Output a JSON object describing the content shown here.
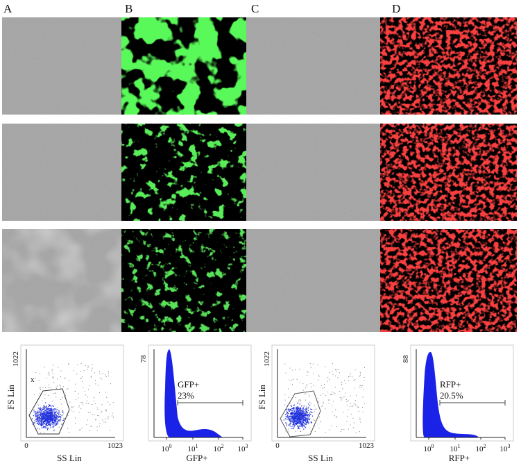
{
  "panel_labels": [
    "A",
    "B",
    "C",
    "D"
  ],
  "plots": [
    {
      "kind": "scatter",
      "y_label": "FS Lin",
      "x_label": "SS Lin",
      "y_max": "1022",
      "x_max": "1023",
      "origin": "0",
      "gate": "x"
    },
    {
      "kind": "histogram",
      "y_max": "78",
      "marker": "GFP+",
      "percent": "23%",
      "x_label": "GFP+",
      "x_ticks": [
        {
          "base": "10",
          "exp": "0"
        },
        {
          "base": "10",
          "exp": "1"
        },
        {
          "base": "10",
          "exp": "2"
        },
        {
          "base": "10",
          "exp": "3"
        }
      ]
    },
    {
      "kind": "scatter",
      "y_label": "FS Lin",
      "x_label": "SS Lin",
      "y_max": "1022",
      "x_max": "1023",
      "origin": "0"
    },
    {
      "kind": "histogram",
      "y_max": "88",
      "marker": "RFP+",
      "percent": "20.5%",
      "x_label": "RFP+",
      "x_ticks": [
        {
          "base": "10",
          "exp": "0"
        },
        {
          "base": "10",
          "exp": "1"
        },
        {
          "base": "10",
          "exp": "2"
        },
        {
          "base": "10",
          "exp": "3"
        }
      ]
    }
  ]
}
